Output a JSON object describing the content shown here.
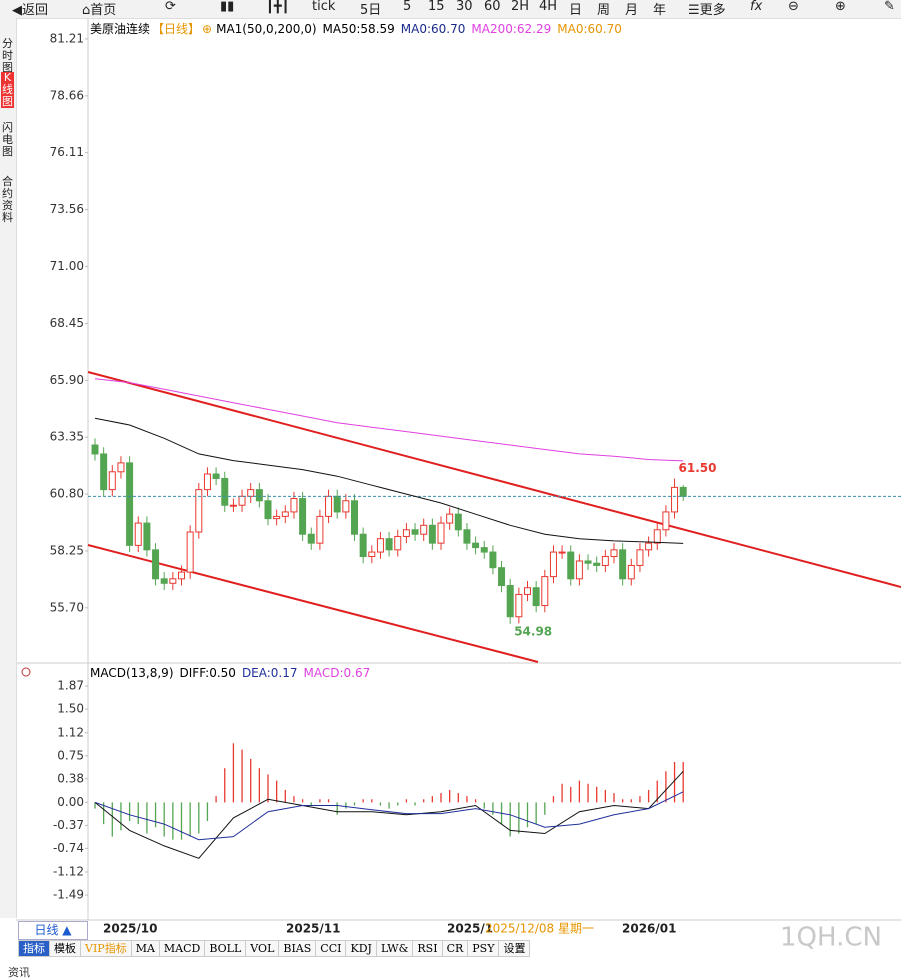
{
  "toolbar": {
    "back": "返回",
    "home": "首页",
    "items": [
      "tick",
      "5日",
      "5",
      "15",
      "30",
      "60",
      "2H",
      "4H",
      "日",
      "周",
      "月",
      "年"
    ],
    "more": "更多"
  },
  "sidebar": [
    "分时图",
    "K线图",
    "闪电图",
    "合约资料"
  ],
  "legend": {
    "symbol": "美原油连续",
    "period": "【日线】",
    "add": "⊕",
    "ma_params": "MA1(50,0,200,0)",
    "ma50": "MA50:58.59",
    "ma0": "MA0:60.70",
    "ma200": "MA200:62.29",
    "ma0b": "MA0:60.70"
  },
  "macd_legend": {
    "params": "MACD(13,8,9)",
    "diff": "DIFF:0.50",
    "dea": "DEA:0.17",
    "macd": "MACD:0.67"
  },
  "chart_data": [
    {
      "type": "candlestick",
      "up_color": "#e8382f",
      "down_color": "#54a552",
      "open": [
        63.0,
        62.6,
        61.0,
        61.8,
        62.2,
        58.5,
        59.5,
        58.3,
        57.0,
        56.8,
        57.0,
        57.3,
        59.1,
        61.0,
        61.7,
        61.5,
        60.3,
        60.3,
        60.7,
        61.0,
        60.5,
        59.7,
        59.8,
        60.0,
        60.6,
        59.0,
        58.6,
        59.8,
        60.7,
        60.0,
        60.5,
        59.0,
        58.0,
        58.2,
        58.8,
        58.3,
        58.9,
        59.2,
        59.0,
        59.4,
        58.6,
        59.5,
        59.9,
        59.2,
        58.6,
        58.4,
        58.2,
        57.5,
        56.7,
        55.3,
        56.3,
        56.6,
        55.8,
        57.1,
        58.2,
        58.2,
        57.0,
        57.8,
        57.7,
        57.6,
        58.0,
        58.3,
        57.0,
        57.6,
        58.3,
        58.6,
        59.2,
        60.0,
        61.1
      ],
      "high": [
        63.3,
        62.9,
        62.1,
        62.5,
        62.5,
        59.8,
        59.8,
        58.6,
        57.3,
        57.3,
        57.6,
        59.4,
        61.3,
        62.0,
        62.0,
        61.8,
        60.6,
        61.0,
        61.3,
        61.3,
        60.8,
        60.1,
        60.3,
        60.9,
        60.9,
        59.3,
        60.1,
        61.0,
        61.0,
        60.8,
        60.8,
        59.3,
        58.5,
        59.1,
        59.1,
        59.2,
        59.5,
        59.5,
        59.7,
        59.7,
        59.8,
        60.2,
        60.2,
        59.5,
        58.9,
        58.7,
        58.5,
        57.8,
        57.0,
        56.6,
        56.9,
        56.9,
        57.4,
        58.5,
        58.5,
        58.5,
        58.1,
        58.1,
        58.0,
        58.3,
        58.6,
        58.6,
        57.9,
        58.6,
        58.9,
        59.5,
        60.3,
        61.5,
        61.2
      ],
      "low": [
        62.3,
        60.7,
        60.7,
        61.5,
        58.2,
        58.2,
        58.0,
        56.7,
        56.5,
        56.5,
        56.7,
        57.0,
        58.8,
        60.7,
        61.2,
        60.0,
        60.0,
        60.0,
        60.4,
        60.2,
        59.4,
        59.4,
        59.5,
        59.7,
        58.7,
        58.3,
        58.3,
        59.5,
        59.7,
        59.7,
        58.7,
        57.7,
        57.7,
        57.9,
        58.0,
        58.0,
        58.6,
        58.7,
        58.7,
        58.3,
        58.3,
        59.2,
        58.9,
        58.3,
        58.1,
        57.9,
        57.2,
        56.4,
        54.98,
        55.0,
        56.0,
        55.5,
        55.5,
        56.8,
        57.9,
        56.7,
        56.7,
        57.4,
        57.3,
        57.3,
        57.7,
        56.7,
        56.7,
        57.3,
        58.0,
        58.3,
        58.9,
        59.7,
        60.5
      ],
      "close": [
        62.6,
        61.0,
        61.8,
        62.2,
        58.5,
        59.5,
        58.3,
        57.0,
        56.8,
        57.0,
        57.3,
        59.1,
        61.0,
        61.7,
        61.5,
        60.3,
        60.3,
        60.7,
        61.0,
        60.5,
        59.7,
        59.8,
        60.0,
        60.6,
        59.0,
        58.6,
        59.8,
        60.7,
        60.0,
        60.5,
        59.0,
        58.0,
        58.2,
        58.8,
        58.3,
        58.9,
        59.2,
        59.0,
        59.4,
        58.6,
        59.5,
        59.9,
        59.2,
        58.6,
        58.4,
        58.2,
        57.5,
        56.7,
        55.3,
        56.3,
        56.6,
        55.8,
        57.1,
        58.2,
        58.2,
        57.0,
        57.8,
        57.7,
        57.6,
        58.0,
        58.3,
        57.0,
        57.6,
        58.3,
        58.6,
        59.2,
        60.0,
        61.1,
        60.7
      ],
      "ylim": [
        53.27,
        82.15
      ],
      "yticks": [
        81.21,
        78.66,
        76.11,
        73.56,
        {
          "value": 71,
          "label": "71.00"
        },
        68.45,
        {
          "value": 65.9,
          "label": "65.90"
        },
        63.35,
        {
          "value": 60.8,
          "label": "60.80"
        },
        58.25,
        {
          "value": 55.7,
          "label": "55.70"
        }
      ],
      "lines": [
        {
          "color": "#e040e0",
          "x": [
            0,
            4,
            8,
            12,
            16,
            20,
            24,
            28,
            32,
            36,
            40,
            44,
            48,
            52,
            56,
            60,
            64,
            68
          ],
          "values": [
            65.97,
            65.8,
            65.5,
            65.2,
            64.9,
            64.6,
            64.3,
            64.0,
            63.8,
            63.6,
            63.4,
            63.2,
            63.0,
            62.8,
            62.6,
            62.5,
            62.35,
            62.29
          ]
        },
        {
          "color": "#111111",
          "x": [
            0,
            4,
            8,
            12,
            16,
            20,
            24,
            28,
            32,
            36,
            40,
            44,
            48,
            52,
            56,
            60,
            64,
            68
          ],
          "values": [
            64.2,
            63.9,
            63.3,
            62.6,
            62.3,
            62.1,
            61.9,
            61.6,
            61.2,
            60.8,
            60.4,
            59.9,
            59.4,
            59.0,
            58.8,
            58.7,
            58.65,
            58.59
          ]
        }
      ],
      "annotations": [
        {
          "index": 67,
          "value": 61.5,
          "label": "61.50",
          "color": "#e8382f"
        },
        {
          "index": 48,
          "value": 54.98,
          "label": "54.98",
          "color": "#54a552"
        }
      ],
      "x_labels": [
        "2025/10",
        "2025/11",
        "2025/1",
        "2026/01"
      ],
      "cursor_label": "2025/12/08 星期一"
    },
    {
      "type": "macd",
      "up_color": "#e8382f",
      "down_color": "#54a552",
      "values": [
        -0.1,
        -0.35,
        -0.55,
        -0.45,
        -0.3,
        -0.35,
        -0.5,
        -0.4,
        -0.55,
        -0.6,
        -0.6,
        -0.55,
        -0.5,
        -0.3,
        0.1,
        0.55,
        0.95,
        0.85,
        0.7,
        0.55,
        0.45,
        0.35,
        0.2,
        0.1,
        0.05,
        -0.05,
        0.05,
        0.05,
        -0.2,
        -0.1,
        -0.05,
        0.05,
        0.05,
        -0.05,
        -0.1,
        -0.05,
        0.05,
        -0.05,
        0.05,
        0.1,
        0.15,
        0.2,
        0.15,
        0.1,
        0.05,
        -0.1,
        -0.2,
        -0.35,
        -0.55,
        -0.5,
        -0.4,
        -0.35,
        -0.2,
        0.1,
        0.3,
        0.25,
        0.35,
        0.3,
        0.25,
        0.2,
        0.15,
        0.05,
        0.05,
        0.1,
        0.2,
        0.35,
        0.5,
        0.65,
        0.65
      ],
      "ylim": [
        -1.86,
        2.21
      ],
      "yticks": [
        1.87,
        {
          "value": 1.5,
          "label": "1.50"
        },
        1.12,
        0.75,
        0.38,
        {
          "value": 0,
          "label": "0.00"
        },
        -0.37,
        -0.74,
        -1.12,
        -1.49
      ],
      "lines": [
        {
          "color": "#111111",
          "x": [
            0,
            4,
            8,
            12,
            16,
            20,
            24,
            28,
            32,
            36,
            40,
            44,
            48,
            52,
            56,
            60,
            64,
            68
          ],
          "values": [
            0.0,
            -0.45,
            -0.7,
            -0.9,
            -0.25,
            0.05,
            -0.05,
            -0.15,
            -0.15,
            -0.2,
            -0.15,
            -0.05,
            -0.45,
            -0.5,
            -0.15,
            -0.05,
            -0.1,
            0.5
          ]
        },
        {
          "color": "#1f2f9a",
          "x": [
            0,
            4,
            8,
            12,
            16,
            20,
            24,
            28,
            32,
            36,
            40,
            44,
            48,
            52,
            56,
            60,
            64,
            68
          ],
          "values": [
            0.0,
            -0.2,
            -0.35,
            -0.6,
            -0.55,
            -0.15,
            -0.05,
            -0.05,
            -0.12,
            -0.18,
            -0.18,
            -0.1,
            -0.2,
            -0.4,
            -0.35,
            -0.2,
            -0.1,
            0.17
          ]
        }
      ]
    }
  ],
  "bottom": {
    "period_button": "日线 ▲",
    "tabs": [
      "指标",
      "模板",
      "VIP指标",
      "MA",
      "MACD",
      "BOLL",
      "VOL",
      "BIAS",
      "CCI",
      "KDJ",
      "LW&",
      "RSI",
      "CR",
      "PSY",
      "设置"
    ],
    "watermark": "1QH.CN",
    "footer": "资讯"
  }
}
